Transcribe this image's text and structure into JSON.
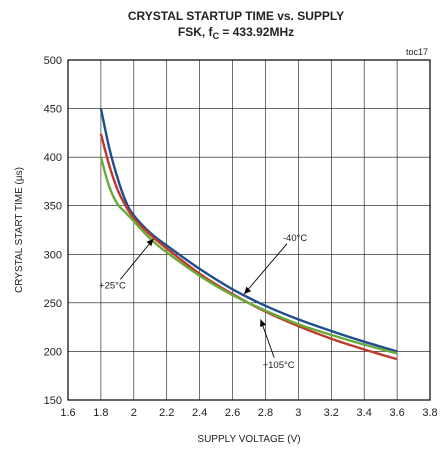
{
  "chart_data": {
    "type": "line",
    "title_line1": "CRYSTAL STARTUP TIME vs. SUPPLY",
    "title_line2_prefix": "FSK, f",
    "title_line2_sub": "C",
    "title_line2_suffix": " = 433.92MHz",
    "figure_tag": "toc17",
    "xlabel": "SUPPLY VOLTAGE (V)",
    "ylabel": "CRYSTAL START TIME (µs)",
    "xlim": [
      1.6,
      3.8
    ],
    "ylim": [
      150,
      500
    ],
    "xticks": [
      1.6,
      1.8,
      2.0,
      2.2,
      2.4,
      2.6,
      2.8,
      3.0,
      3.2,
      3.4,
      3.6,
      3.8
    ],
    "xtick_labels": [
      "1.6",
      "1.8",
      "2",
      "2.2",
      "2.4",
      "2.6",
      "2.8",
      "3",
      "3.2",
      "3.4",
      "3.6",
      "3.8"
    ],
    "yticks": [
      150,
      200,
      250,
      300,
      350,
      400,
      450,
      500
    ],
    "ytick_labels": [
      "150",
      "200",
      "250",
      "300",
      "350",
      "400",
      "450",
      "500"
    ],
    "grid": true,
    "series": [
      {
        "name": "-40°C",
        "color": "#1f4e8c",
        "x": [
          1.8,
          1.85,
          1.9,
          1.95,
          2.0,
          2.1,
          2.2,
          2.4,
          2.6,
          2.8,
          3.0,
          3.2,
          3.4,
          3.6
        ],
        "y": [
          450,
          410,
          379,
          355,
          340,
          322,
          309,
          285,
          264,
          247,
          233,
          221,
          210,
          200
        ]
      },
      {
        "name": "+25°C",
        "color": "#c0392b",
        "x": [
          1.8,
          1.85,
          1.9,
          1.95,
          2.0,
          2.1,
          2.2,
          2.4,
          2.6,
          2.8,
          3.0,
          3.2,
          3.4,
          3.6
        ],
        "y": [
          424,
          392,
          367,
          350,
          337,
          320,
          306,
          280,
          259,
          241,
          226,
          213,
          202,
          192
        ]
      },
      {
        "name": "+105°C",
        "color": "#6aaa3a",
        "x": [
          1.8,
          1.85,
          1.9,
          1.95,
          2.0,
          2.1,
          2.2,
          2.4,
          2.6,
          2.8,
          3.0,
          3.2,
          3.4,
          3.6
        ],
        "y": [
          400,
          370,
          352,
          343,
          334,
          316,
          302,
          278,
          258,
          242,
          228,
          217,
          207,
          198
        ]
      }
    ],
    "annotations": [
      {
        "text": "-40°C",
        "label_xy": [
          2.98,
          317
        ],
        "arrow_to": [
          2.67,
          259
        ]
      },
      {
        "text": "+25°C",
        "label_xy": [
          1.87,
          268
        ],
        "arrow_to": [
          2.12,
          316
        ]
      },
      {
        "text": "+105°C",
        "label_xy": [
          2.88,
          186
        ],
        "arrow_to": [
          2.77,
          233
        ]
      }
    ]
  }
}
